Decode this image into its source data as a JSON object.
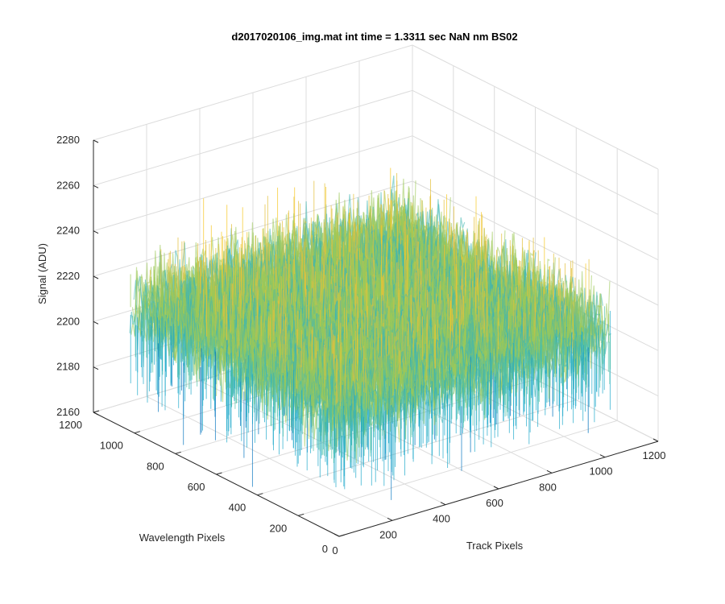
{
  "chart_data": {
    "type": "surface",
    "title": "d2017020106_img.mat int time = 1.3311 sec  NaN nm BS02",
    "xlabel": "Track Pixels",
    "ylabel": "Wavelength Pixels",
    "zlabel": "Signal (ADU)",
    "xlim": [
      0,
      1200
    ],
    "ylim": [
      0,
      1200
    ],
    "zlim": [
      2160,
      2280
    ],
    "xticks": [
      "0",
      "200",
      "400",
      "600",
      "800",
      "1000",
      "1200"
    ],
    "yticks": [
      "0",
      "200",
      "400",
      "600",
      "800",
      "1000",
      "1200"
    ],
    "zticks": [
      "2160",
      "2180",
      "2200",
      "2220",
      "2240",
      "2260",
      "2280"
    ],
    "data_extent": {
      "x": [
        1,
        1024
      ],
      "y": [
        1,
        1024
      ]
    },
    "surface_mean": 2215,
    "surface_noise_range": [
      2170,
      2262
    ],
    "grid": true,
    "colormap": [
      "#0072bd",
      "#1aa7c9",
      "#4cc0a8",
      "#9cc957",
      "#e3c13c",
      "#f6c929"
    ]
  }
}
